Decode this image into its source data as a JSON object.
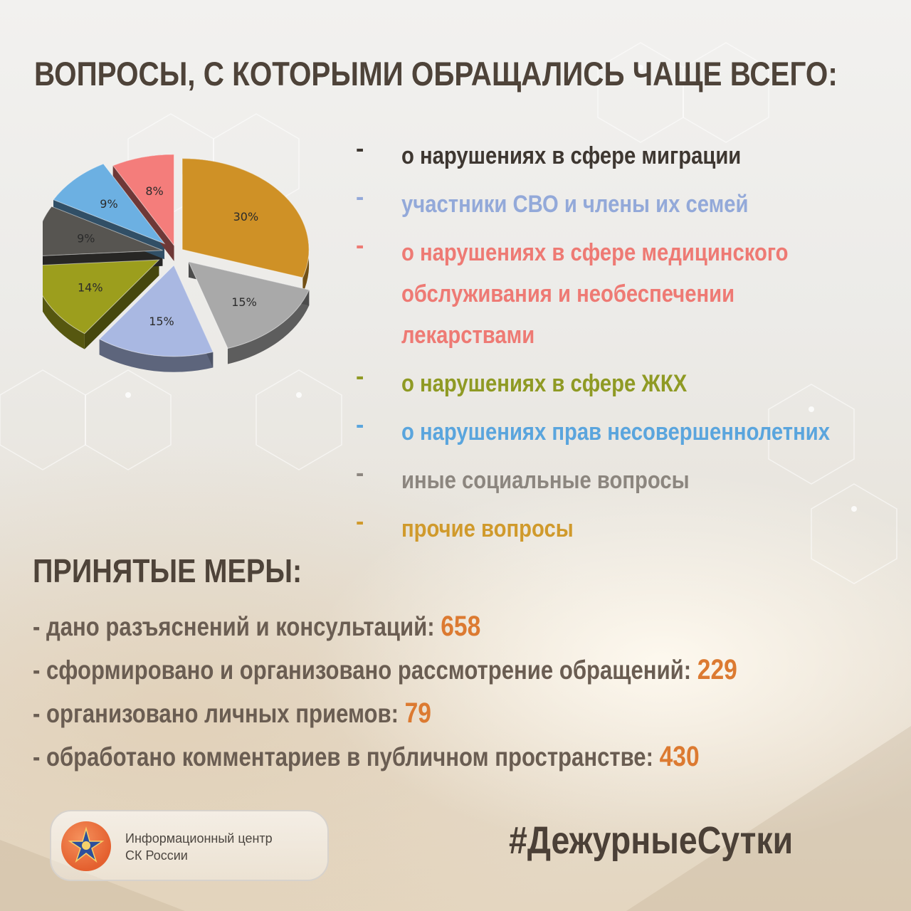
{
  "title": "ВОПРОСЫ, С КОТОРЫМИ ОБРАЩАЛИСЬ ЧАЩЕ ВСЕГО:",
  "chart_data": {
    "type": "pie",
    "slices": [
      {
        "label": "прочие вопросы",
        "value": 30,
        "value_label": "30%",
        "color": "#cf9126"
      },
      {
        "label": "иные социальные вопросы",
        "value": 15,
        "value_label": "15%",
        "color": "#a9a9a9"
      },
      {
        "label": "о нарушениях прав несовершеннолетних",
        "value": 15,
        "value_label": "15%",
        "color": "#a9b8e2"
      },
      {
        "label": "о нарушениях в сфере ЖКХ",
        "value": 14,
        "value_label": "14%",
        "color": "#9c9e1d"
      },
      {
        "label": "о нарушениях в сфере миграции",
        "value": 9,
        "value_label": "9%",
        "color": "#575551"
      },
      {
        "label": "участники СВО и члены их семей",
        "value": 9,
        "value_label": "9%",
        "color": "#6cb0e2"
      },
      {
        "label": "о нарушениях в сфере медицинского обслуживания и необеспечении лекарствами",
        "value": 8,
        "value_label": "8%",
        "color": "#f47d7b"
      }
    ]
  },
  "legend": [
    {
      "text": "о нарушениях в сфере миграции",
      "color": "#3e3731"
    },
    {
      "text": "участники СВО и члены их семей",
      "color": "#93a9d9"
    },
    {
      "text": "о нарушениях в сфере медицинского обслуживания и необеспечении лекарствами",
      "color": "#ee7a74"
    },
    {
      "text": "о нарушениях в сфере ЖКХ",
      "color": "#8f9a24"
    },
    {
      "text": "о нарушениях прав несовершеннолетних",
      "color": "#5aa5dd"
    },
    {
      "text": "иные социальные вопросы",
      "color": "#8c867f"
    },
    {
      "text": "прочие вопросы",
      "color": "#d09a2c"
    }
  ],
  "legend_dash": "-",
  "measures": {
    "title": "ПРИНЯТЫЕ МЕРЫ:",
    "items": [
      {
        "text": "- дано разъяснений и консультаций: ",
        "value": "658"
      },
      {
        "text": "- сформировано и организовано рассмотрение обращений: ",
        "value": "229"
      },
      {
        "text": "- организовано личных приемов: ",
        "value": "79"
      },
      {
        "text": "- обработано комментариев в публичном пространстве: ",
        "value": "430"
      }
    ]
  },
  "footer": {
    "logo_line1": "Информационный центр",
    "logo_line2": "СК России",
    "hashtag": "#ДежурныеСутки"
  }
}
